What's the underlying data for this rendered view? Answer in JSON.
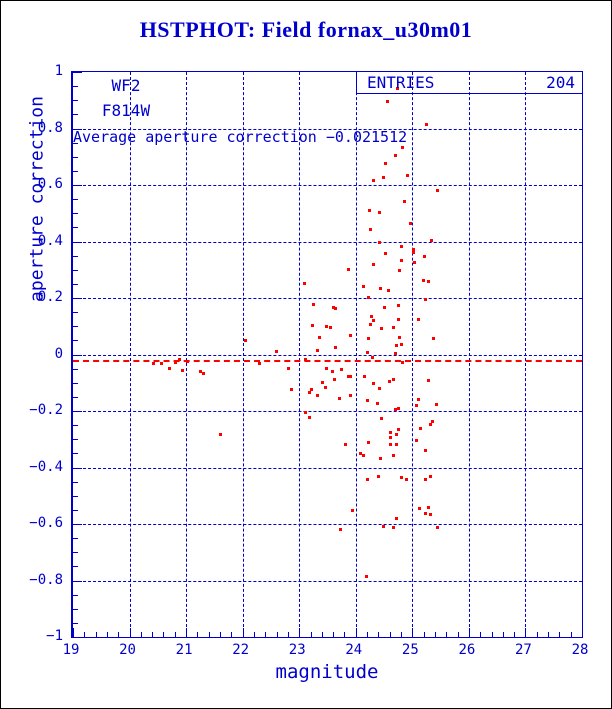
{
  "title": "HSTPHOT: Field fornax_u30m01",
  "colors": {
    "line_blue": "#0000cd",
    "point_red": "#ff0000",
    "background": "#ffffff",
    "frame_black": "#000000"
  },
  "annotations": {
    "camera": "WF2",
    "filter": "F814W",
    "average_text": "Average aperture correction −0.021512",
    "entries_label": "ENTRIES",
    "entries_value": "204"
  },
  "chart_data": {
    "type": "scatter",
    "title": "HSTPHOT: Field fornax_u30m01",
    "xlabel": "magnitude",
    "ylabel": "aperture correction",
    "xlim": [
      19,
      28
    ],
    "ylim": [
      -1,
      1
    ],
    "x_major_step": 1,
    "x_minor_step": 0.2,
    "y_major_step": 0.2,
    "y_minor_step": 0.05,
    "grid": true,
    "grid_style": "dashed",
    "entries": 204,
    "average_line_y": -0.021512,
    "x_tick_labels": [
      "19",
      "20",
      "21",
      "22",
      "23",
      "24",
      "25",
      "26",
      "27",
      "28"
    ],
    "y_tick_labels": [
      "1",
      "0.8",
      "0.6",
      "0.4",
      "0.2",
      "0",
      "−0.2",
      "−0.4",
      "−0.6",
      "−0.8",
      "−1"
    ],
    "points": [
      [
        20.42,
        -0.03
      ],
      [
        20.55,
        -0.03
      ],
      [
        20.69,
        -0.048
      ],
      [
        20.81,
        -0.026
      ],
      [
        20.88,
        -0.016
      ],
      [
        20.93,
        -0.055
      ],
      [
        21.02,
        -0.023
      ],
      [
        21.25,
        -0.058
      ],
      [
        21.3,
        -0.065
      ],
      [
        21.6,
        -0.28
      ],
      [
        22.04,
        0.051
      ],
      [
        22.28,
        -0.03
      ],
      [
        22.59,
        0.012
      ],
      [
        22.8,
        -0.048
      ],
      [
        22.85,
        -0.122
      ],
      [
        23.1,
        -0.016
      ],
      [
        23.11,
        -0.203
      ],
      [
        23.18,
        -0.22
      ],
      [
        23.17,
        -0.133
      ],
      [
        23.32,
        0.016
      ],
      [
        24.73,
        0.943
      ],
      [
        24.55,
        0.898
      ],
      [
        25.24,
        0.817
      ],
      [
        24.82,
        0.735
      ],
      [
        24.69,
        0.707
      ],
      [
        24.52,
        0.679
      ],
      [
        24.48,
        0.63
      ],
      [
        24.9,
        0.634
      ],
      [
        24.3,
        0.616
      ],
      [
        25.44,
        0.584
      ],
      [
        24.86,
        0.545
      ],
      [
        24.24,
        0.51
      ],
      [
        24.41,
        0.506
      ],
      [
        24.95,
        0.467
      ],
      [
        24.26,
        0.443
      ],
      [
        24.41,
        0.4
      ],
      [
        25.33,
        0.404
      ],
      [
        24.8,
        0.383
      ],
      [
        25.01,
        0.372
      ],
      [
        25.01,
        0.362
      ],
      [
        24.52,
        0.358
      ],
      [
        25.2,
        0.347
      ],
      [
        24.8,
        0.333
      ],
      [
        25.03,
        0.326
      ],
      [
        24.31,
        0.319
      ],
      [
        24.77,
        0.298
      ],
      [
        23.86,
        0.302
      ],
      [
        23.08,
        0.252
      ],
      [
        25.19,
        0.263
      ],
      [
        25.27,
        0.259
      ],
      [
        24.13,
        0.242
      ],
      [
        24.43,
        0.235
      ],
      [
        24.57,
        0.228
      ],
      [
        24.22,
        0.203
      ],
      [
        25.23,
        0.196
      ],
      [
        23.24,
        0.178
      ],
      [
        23.59,
        0.168
      ],
      [
        23.63,
        0.164
      ],
      [
        24.5,
        0.168
      ],
      [
        24.75,
        0.175
      ],
      [
        24.27,
        0.136
      ],
      [
        24.31,
        0.122
      ],
      [
        24.26,
        0.108
      ],
      [
        24.74,
        0.125
      ],
      [
        23.22,
        0.104
      ],
      [
        23.48,
        0.101
      ],
      [
        23.55,
        0.097
      ],
      [
        24.45,
        0.093
      ],
      [
        24.65,
        0.097
      ],
      [
        25.1,
        0.125
      ],
      [
        23.35,
        0.062
      ],
      [
        23.89,
        0.069
      ],
      [
        24.21,
        0.058
      ],
      [
        24.76,
        0.062
      ],
      [
        24.8,
        0.037
      ],
      [
        23.64,
        0.026
      ],
      [
        24.72,
        0.034
      ],
      [
        25.37,
        0.058
      ],
      [
        24.2,
        0.009
      ],
      [
        24.7,
        0.005
      ],
      [
        24.29,
        -0.009
      ],
      [
        24.81,
        -0.026
      ],
      [
        23.48,
        -0.048
      ],
      [
        23.73,
        -0.051
      ],
      [
        23.58,
        -0.058
      ],
      [
        23.86,
        -0.076
      ],
      [
        23.9,
        -0.076
      ],
      [
        23.62,
        -0.086
      ],
      [
        23.4,
        -0.097
      ],
      [
        24.15,
        -0.076
      ],
      [
        24.65,
        -0.086
      ],
      [
        24.58,
        -0.093
      ],
      [
        25.27,
        -0.09
      ],
      [
        23.2,
        -0.122
      ],
      [
        23.45,
        -0.115
      ],
      [
        23.31,
        -0.143
      ],
      [
        24.31,
        -0.101
      ],
      [
        24.41,
        -0.118
      ],
      [
        23.71,
        -0.153
      ],
      [
        23.9,
        -0.143
      ],
      [
        24.2,
        -0.16
      ],
      [
        24.37,
        -0.171
      ],
      [
        24.69,
        -0.192
      ],
      [
        24.75,
        -0.189
      ],
      [
        25.1,
        -0.157
      ],
      [
        25.06,
        -0.178
      ],
      [
        25.42,
        -0.175
      ],
      [
        24.44,
        -0.224
      ],
      [
        25.35,
        -0.235
      ],
      [
        25.31,
        -0.245
      ],
      [
        25.13,
        -0.259
      ],
      [
        24.75,
        -0.263
      ],
      [
        24.6,
        -0.273
      ],
      [
        24.72,
        -0.28
      ],
      [
        24.6,
        -0.291
      ],
      [
        25.06,
        -0.302
      ],
      [
        23.81,
        -0.316
      ],
      [
        24.21,
        -0.309
      ],
      [
        24.6,
        -0.316
      ],
      [
        24.72,
        -0.316
      ],
      [
        25.22,
        -0.337
      ],
      [
        24.08,
        -0.347
      ],
      [
        24.12,
        -0.354
      ],
      [
        24.43,
        -0.368
      ],
      [
        24.65,
        -0.354
      ],
      [
        24.2,
        -0.442
      ],
      [
        24.4,
        -0.429
      ],
      [
        24.8,
        -0.434
      ],
      [
        24.88,
        -0.442
      ],
      [
        25.22,
        -0.442
      ],
      [
        25.32,
        -0.43
      ],
      [
        23.93,
        -0.549
      ],
      [
        25.12,
        -0.545
      ],
      [
        25.27,
        -0.541
      ],
      [
        25.22,
        -0.562
      ],
      [
        25.31,
        -0.566
      ],
      [
        24.71,
        -0.579
      ],
      [
        23.72,
        -0.616
      ],
      [
        24.49,
        -0.608
      ],
      [
        24.66,
        -0.612
      ],
      [
        25.43,
        -0.611
      ],
      [
        24.18,
        -0.785
      ]
    ]
  }
}
